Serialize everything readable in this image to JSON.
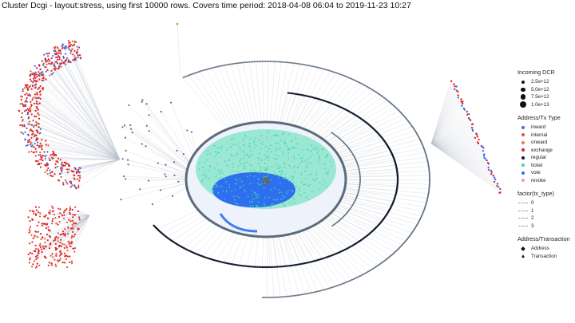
{
  "title": "Cluster Dcgi - layout:stress, using first 10000 rows. Covers time period: 2018-04-08 06:04 to 2019-11-23 10:27",
  "colors": {
    "inward": "#3b6fe0",
    "internal": "#e0583a",
    "onward": "#d9845a",
    "exchange": "#e02020",
    "regular": "#111a2e",
    "ticket": "#3fd6a8",
    "vote": "#2e6ff0",
    "revoke": "#f0a5a0",
    "edge": "#b9c0cb",
    "ring_dark": "#607080"
  },
  "legend": {
    "size": {
      "title": "Incoming DCR",
      "items": [
        {
          "label": "2.5e+12",
          "size": 2.5
        },
        {
          "label": "5.0e+12",
          "size": 5.0
        },
        {
          "label": "7.5e+12",
          "size": 7.5
        },
        {
          "label": "1.0e+13",
          "size": 10.0
        }
      ]
    },
    "type": {
      "title": "Address/Tx Type",
      "items": [
        {
          "label": "inward",
          "color_key": "inward"
        },
        {
          "label": "internal",
          "color_key": "internal"
        },
        {
          "label": "onward",
          "color_key": "onward"
        },
        {
          "label": "exchange",
          "color_key": "exchange"
        },
        {
          "label": "regular",
          "color_key": "regular"
        },
        {
          "label": "ticket",
          "color_key": "ticket"
        },
        {
          "label": "vote",
          "color_key": "vote"
        },
        {
          "label": "revoke",
          "color_key": "revoke"
        }
      ]
    },
    "edge": {
      "title": "factor(tx_type)",
      "items": [
        {
          "label": "0"
        },
        {
          "label": "1"
        },
        {
          "label": "2"
        },
        {
          "label": "3"
        }
      ]
    },
    "shape": {
      "title": "Address/Transaction",
      "items": [
        {
          "label": "Address",
          "shape": "diamond"
        },
        {
          "label": "Transaction",
          "shape": "triangle"
        }
      ]
    }
  }
}
